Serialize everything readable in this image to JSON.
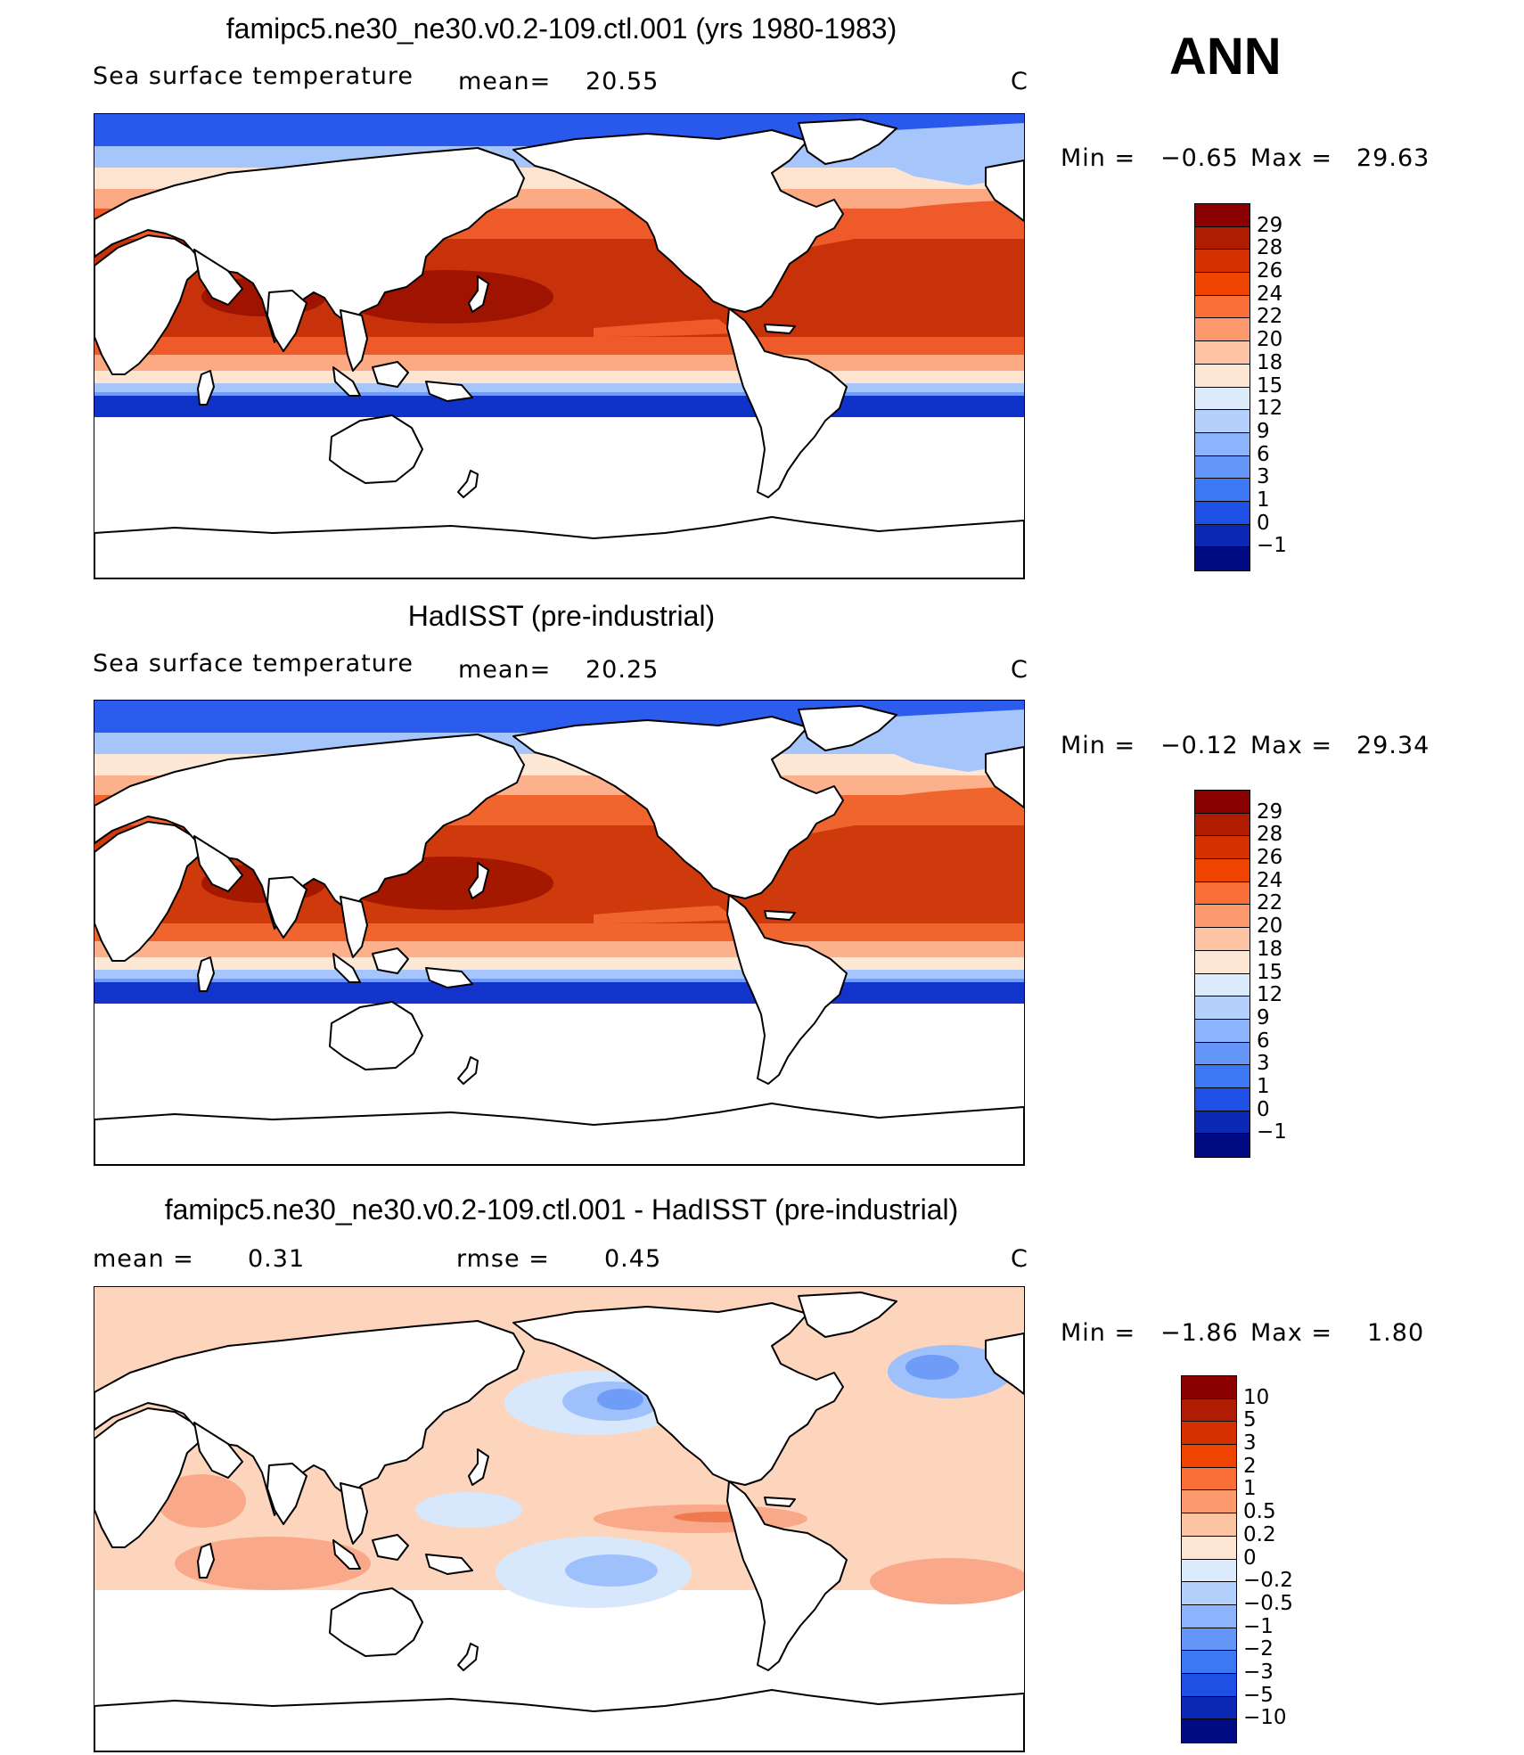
{
  "season": "ANN",
  "panels": [
    {
      "title": "famipc5.ne30_ne30.v0.2-109.ctl.001 (yrs 1980-1983)",
      "field_label": "Sea surface temperature",
      "mean_label": "mean=",
      "mean_value": "20.55",
      "units": "C",
      "min_label": "Min =",
      "min_value": "−0.65",
      "max_label": "Max =",
      "max_value": "29.63",
      "colorbar_labels": [
        "29",
        "28",
        "26",
        "24",
        "22",
        "20",
        "18",
        "15",
        "12",
        "9",
        "6",
        "3",
        "1",
        "0",
        "−1"
      ],
      "colorbar_colors": [
        "#8b0000",
        "#b01c00",
        "#d53000",
        "#ee4400",
        "#fa6e38",
        "#fc9a6e",
        "#fdc4a4",
        "#fde6d4",
        "#dcebfc",
        "#b4d0fc",
        "#8cb4fc",
        "#6496f8",
        "#3c78f4",
        "#1e50e6",
        "#0a28b4",
        "#000a82"
      ],
      "map_palette": {
        "tropics": "#c8320a",
        "warm_pool": "#9e1400",
        "subtropics": "#ee5a2a",
        "midlat": "#fcaa84",
        "cool": "#fde4d0",
        "subpolar": "#a6c6fb",
        "polar": "#2858ec",
        "ice_edge": "#0f32c8"
      }
    },
    {
      "title": "HadISST (pre-industrial)",
      "field_label": "Sea surface temperature",
      "mean_label": "mean=",
      "mean_value": "20.25",
      "units": "C",
      "min_label": "Min =",
      "min_value": "−0.12",
      "max_label": "Max =",
      "max_value": "29.34",
      "colorbar_labels": [
        "29",
        "28",
        "26",
        "24",
        "22",
        "20",
        "18",
        "15",
        "12",
        "9",
        "6",
        "3",
        "1",
        "0",
        "−1"
      ],
      "colorbar_colors": [
        "#8b0000",
        "#b01c00",
        "#d53000",
        "#ee4400",
        "#fa6e38",
        "#fc9a6e",
        "#fdc4a4",
        "#fde6d4",
        "#dcebfc",
        "#b4d0fc",
        "#8cb4fc",
        "#6496f8",
        "#3c78f4",
        "#1e50e6",
        "#0a28b4",
        "#000a82"
      ],
      "map_palette": {
        "tropics": "#cf3a0c",
        "warm_pool": "#a51800",
        "subtropics": "#f0642e",
        "midlat": "#fcb08c",
        "cool": "#fde8d6",
        "subpolar": "#a6c6fb",
        "polar": "#2c5cee",
        "ice_edge": "#1234ca"
      }
    },
    {
      "title": "famipc5.ne30_ne30.v0.2-109.ctl.001 - HadISST (pre-industrial)",
      "mean_label": "mean =",
      "mean_value": "0.31",
      "rmse_label": "rmse =",
      "rmse_value": "0.45",
      "units": "C",
      "min_label": "Min =",
      "min_value": "−1.86",
      "max_label": "Max =",
      "max_value": "1.80",
      "colorbar_labels": [
        "10",
        "5",
        "3",
        "2",
        "1",
        "0.5",
        "0.2",
        "0",
        "−0.2",
        "−0.5",
        "−1",
        "−2",
        "−3",
        "−5",
        "−10"
      ],
      "colorbar_colors": [
        "#8b0000",
        "#b01c00",
        "#d53000",
        "#ee4400",
        "#fa6e38",
        "#fc9a6e",
        "#fdc4a4",
        "#fde6d4",
        "#dcebfc",
        "#b4d0fc",
        "#8cb4fc",
        "#6496f8",
        "#3c78f4",
        "#1e50e6",
        "#0a28b4",
        "#000a82"
      ],
      "map_palette": {
        "base": "#fdd4bc",
        "warm": "#f9a88a",
        "hot": "#f07a50",
        "cool": "#d8e8fc",
        "cold": "#9ec0fb",
        "colder": "#6e9cf6"
      }
    }
  ]
}
